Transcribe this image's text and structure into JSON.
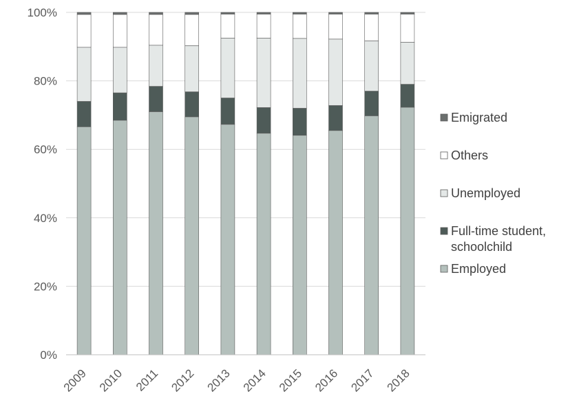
{
  "chart_data": {
    "type": "bar",
    "stacked": true,
    "percent_stacked": true,
    "categories": [
      "2009",
      "2010",
      "2011",
      "2012",
      "2013",
      "2014",
      "2015",
      "2016",
      "2017",
      "2018"
    ],
    "series": [
      {
        "name": "Employed",
        "values": [
          66.6,
          68.5,
          71.0,
          69.5,
          67.3,
          64.7,
          64.1,
          65.5,
          69.8,
          72.3
        ],
        "color": "#b4c0bc"
      },
      {
        "name": "Full-time student, schoolchild",
        "values": [
          7.4,
          8.0,
          7.4,
          7.3,
          7.7,
          7.5,
          7.9,
          7.3,
          7.2,
          6.7
        ],
        "color": "#4e5b58"
      },
      {
        "name": "Unemployed",
        "values": [
          15.8,
          13.3,
          12.0,
          13.5,
          17.5,
          20.3,
          20.4,
          19.4,
          14.7,
          12.3
        ],
        "color": "#e4e8e7"
      },
      {
        "name": "Others",
        "values": [
          9.6,
          9.6,
          9.0,
          9.1,
          7.0,
          7.0,
          7.1,
          7.3,
          7.8,
          8.2
        ],
        "color": "#ffffff"
      },
      {
        "name": "Emigrated",
        "values": [
          0.6,
          0.6,
          0.6,
          0.6,
          0.5,
          0.5,
          0.5,
          0.5,
          0.5,
          0.5
        ],
        "color": "#6b6f6e"
      }
    ],
    "ylim": [
      0,
      100
    ],
    "yticks": [
      "0%",
      "20%",
      "40%",
      "60%",
      "80%",
      "100%"
    ],
    "grid": true,
    "legend_position": "right",
    "legend_order": [
      "Emigrated",
      "Others",
      "Unemployed",
      "Full-time student, schoolchild",
      "Employed"
    ],
    "legend_lines": {
      "Full-time student, schoolchild": [
        "Full-time student,",
        "schoolchild"
      ]
    },
    "title": "",
    "xlabel": "",
    "ylabel": ""
  }
}
